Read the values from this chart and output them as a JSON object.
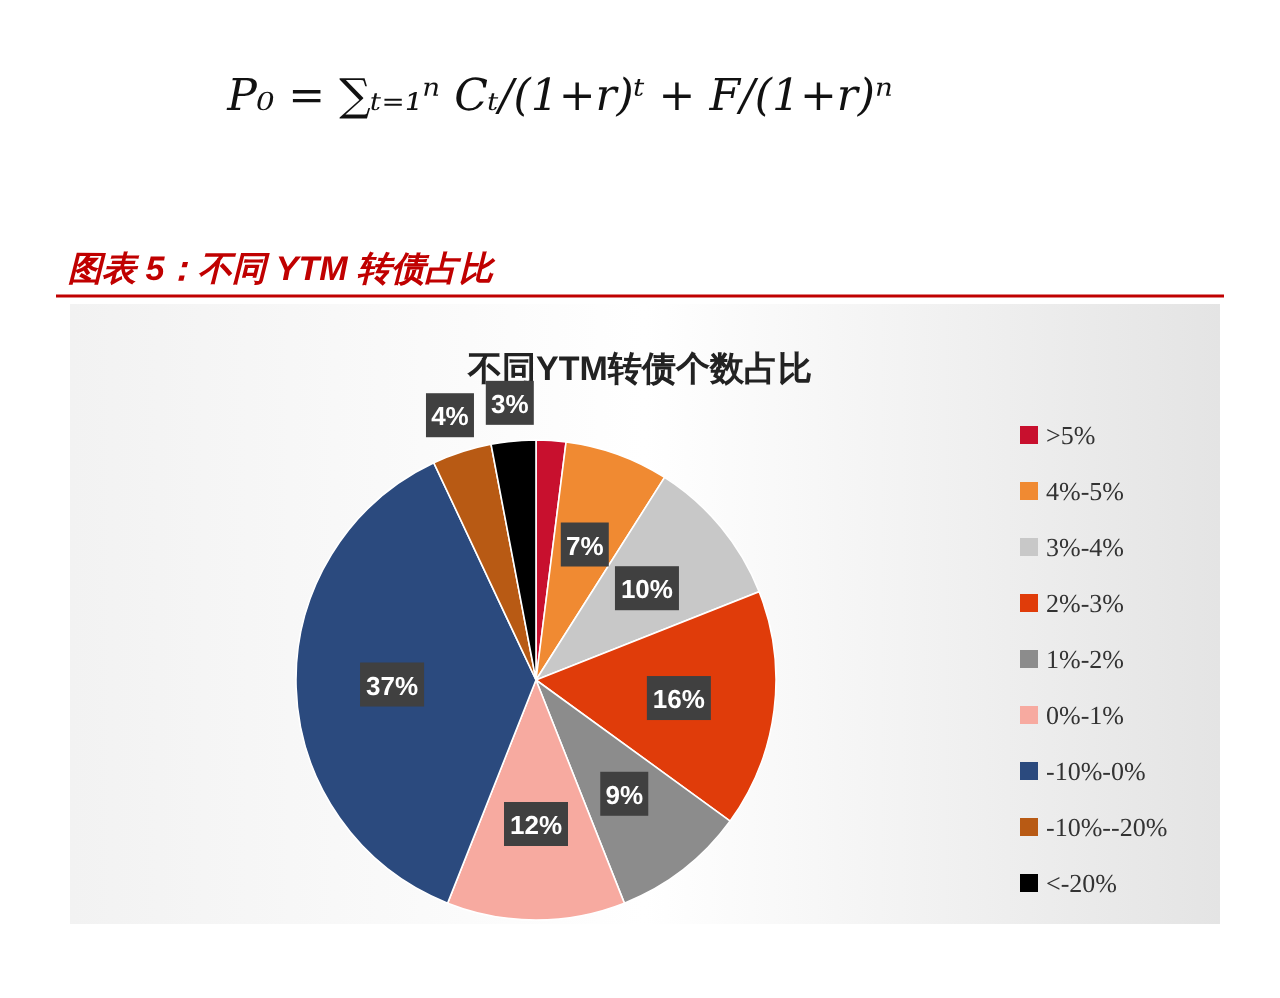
{
  "chart_data": {
    "type": "pie",
    "title": "图表 5：不同 YTM 转债占比",
    "subtitle": "不同YTM转债个数占比",
    "categories": [
      ">5%",
      "4%-5%",
      "3%-4%",
      "2%-3%",
      "1%-2%",
      "0%-1%",
      "-10%-0%",
      "-10%--20%",
      "<-20%"
    ],
    "values": [
      2,
      7,
      10,
      16,
      9,
      12,
      37,
      4,
      3
    ],
    "colors": [
      "#c8102e",
      "#f08a32",
      "#c8c8c8",
      "#e03c0a",
      "#8c8c8c",
      "#f7aaa0",
      "#2b4a7e",
      "#b85a14",
      "#000000"
    ],
    "value_labels": [
      null,
      "7%",
      "10%",
      "16%",
      "9%",
      "12%",
      "37%",
      "4%",
      "3%"
    ],
    "legend": "right",
    "annotations": [
      "P₀ = ∑ₜ₌₁ⁿ Cₜ/(1+r)ᵗ + F/(1+r)ⁿ"
    ]
  }
}
